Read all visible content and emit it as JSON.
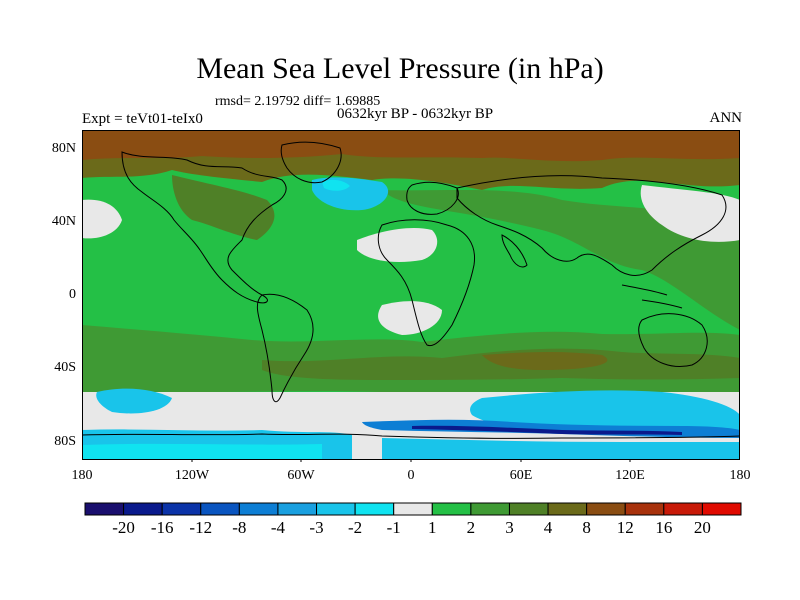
{
  "figure": {
    "title": "Mean Sea Level Pressure (in hPa)",
    "stats": "rmsd= 2.19792 diff= 1.69885",
    "period": "0632kyr BP - 0632kyr BP",
    "experiment": "Expt = teVt01-teIx0",
    "season": "ANN"
  },
  "axes": {
    "lat_labels": [
      "80N",
      "40N",
      "0",
      "40S",
      "80S"
    ],
    "lon_labels": [
      "180",
      "120W",
      "60W",
      "0",
      "60E",
      "120E",
      "180"
    ]
  },
  "colorbar": {
    "levels": [
      "-20",
      "-16",
      "-12",
      "-8",
      "-4",
      "-3",
      "-2",
      "-1",
      "1",
      "2",
      "3",
      "4",
      "8",
      "12",
      "16",
      "20"
    ],
    "colors": [
      "#1a0f6e",
      "#0a1a8c",
      "#0b33a8",
      "#0a55c0",
      "#0d7ed4",
      "#1aa0e0",
      "#19c4ea",
      "#10e3f0",
      "#e8e8e8",
      "#24c046",
      "#3f9a34",
      "#4f8027",
      "#6b6a1a",
      "#8a4d12",
      "#a8320c",
      "#c81a08",
      "#e00a00"
    ]
  },
  "chart_data": {
    "type": "heatmap",
    "title": "Mean Sea Level Pressure (in hPa)",
    "variable": "difference in mean sea level pressure",
    "units": "hPa",
    "lat_range": [
      -90,
      90
    ],
    "lon_range": [
      -180,
      180
    ],
    "contour_levels": [
      -20,
      -16,
      -12,
      -8,
      -4,
      -3,
      -2,
      -1,
      1,
      2,
      3,
      4,
      8,
      12,
      16,
      20
    ],
    "rmsd": 2.19792,
    "diff": 1.69885,
    "season": "ANN"
  }
}
